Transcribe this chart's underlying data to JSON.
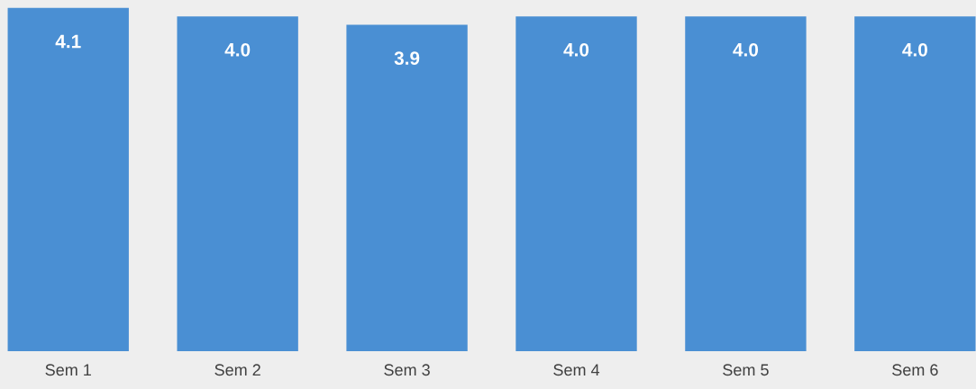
{
  "chart_data": {
    "type": "bar",
    "categories": [
      "Sem 1",
      "Sem 2",
      "Sem 3",
      "Sem 4",
      "Sem 5",
      "Sem 6"
    ],
    "values": [
      4.1,
      4.0,
      3.9,
      4.0,
      4.0,
      4.0
    ],
    "color": "#4a8fd3",
    "value_labels": [
      "4.1",
      "4.0",
      "3.9",
      "4.0",
      "4.0",
      "4.0"
    ],
    "tick_labels": "x",
    "grid": false,
    "legend": false
  }
}
